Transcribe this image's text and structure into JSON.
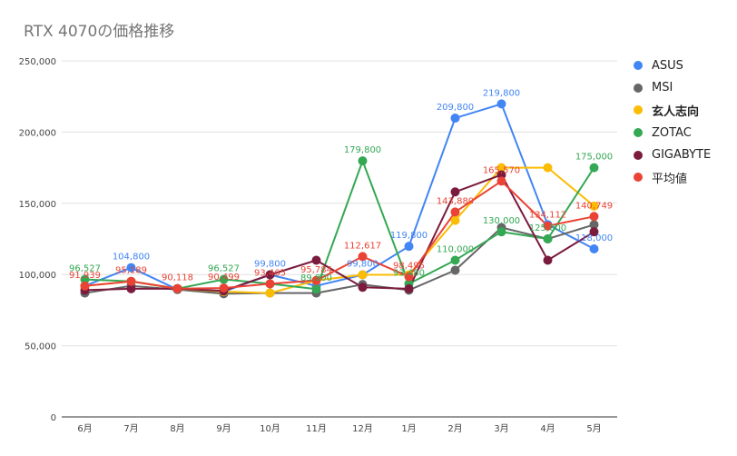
{
  "chart_data": {
    "type": "line",
    "title": "RTX 4070の価格推移",
    "xlabel": "",
    "ylabel": "",
    "categories": [
      "6月",
      "7月",
      "8月",
      "9月",
      "10月",
      "11月",
      "12月",
      "1月",
      "2月",
      "3月",
      "4月",
      "5月"
    ],
    "ylim": [
      0,
      250000
    ],
    "yticks": [
      "0",
      "50,000",
      "100,000",
      "150,000",
      "200,000",
      "250,000"
    ],
    "grid": true,
    "legend_position": "right",
    "series": [
      {
        "name": "ASUS",
        "color": "#4285f4",
        "values": [
          92000,
          104800,
          89500,
          88000,
          99800,
          92000,
          99800,
          119800,
          209800,
          219800,
          135000,
          118000
        ]
      },
      {
        "name": "MSI",
        "color": "#666666",
        "values": [
          87000,
          92000,
          89500,
          86500,
          87000,
          87000,
          93000,
          89000,
          103000,
          133000,
          125000,
          135000
        ]
      },
      {
        "name": "玄人志向",
        "color": "#fbbc04",
        "values": [
          91939,
          95189,
          90118,
          88000,
          87000,
          95784,
          99800,
          99800,
          138000,
          175000,
          175000,
          148000
        ]
      },
      {
        "name": "ZOTAC",
        "color": "#34a853",
        "values": [
          96527,
          95189,
          90118,
          96527,
          93465,
          89800,
          179800,
          93480,
          110000,
          130000,
          125000,
          175000
        ]
      },
      {
        "name": "GIGABYTE",
        "color": "#7b1b3e",
        "values": [
          89000,
          90000,
          90118,
          88500,
          99800,
          110000,
          91000,
          90000,
          158000,
          170000,
          110000,
          130000
        ]
      },
      {
        "name": "平均値",
        "color": "#ea4335",
        "values": [
          91939,
          95189,
          90118,
          90499,
          93465,
          95784,
          112617,
          98495,
          143880,
          165570,
          134112,
          140749
        ]
      }
    ],
    "data_labels": [
      {
        "text": "96,527",
        "series": 3,
        "index": 0,
        "color": "#34a853"
      },
      {
        "text": "91,939",
        "series": 5,
        "index": 0,
        "color": "#ea4335"
      },
      {
        "text": "104,800",
        "series": 0,
        "index": 1,
        "color": "#4285f4"
      },
      {
        "text": "95,189",
        "series": 5,
        "index": 1,
        "color": "#ea4335"
      },
      {
        "text": "90,118",
        "series": 5,
        "index": 2,
        "color": "#ea4335"
      },
      {
        "text": "96,527",
        "series": 3,
        "index": 3,
        "color": "#34a853"
      },
      {
        "text": "90,499",
        "series": 5,
        "index": 3,
        "color": "#ea4335"
      },
      {
        "text": "99,800",
        "series": 0,
        "index": 4,
        "color": "#4285f4"
      },
      {
        "text": "93,465",
        "series": 5,
        "index": 4,
        "color": "#ea4335"
      },
      {
        "text": "95,784",
        "series": 5,
        "index": 5,
        "color": "#ea4335"
      },
      {
        "text": "89,800",
        "series": 3,
        "index": 5,
        "color": "#34a853"
      },
      {
        "text": "179,800",
        "series": 3,
        "index": 6,
        "color": "#34a853"
      },
      {
        "text": "112,617",
        "series": 5,
        "index": 6,
        "color": "#ea4335"
      },
      {
        "text": "99,800",
        "series": 0,
        "index": 6,
        "color": "#4285f4"
      },
      {
        "text": "119,800",
        "series": 0,
        "index": 7,
        "color": "#4285f4"
      },
      {
        "text": "98,495",
        "series": 5,
        "index": 7,
        "color": "#ea4335"
      },
      {
        "text": "93,480",
        "series": 3,
        "index": 7,
        "color": "#34a853"
      },
      {
        "text": "209,800",
        "series": 0,
        "index": 8,
        "color": "#4285f4"
      },
      {
        "text": "143,880",
        "series": 5,
        "index": 8,
        "color": "#ea4335"
      },
      {
        "text": "110,000",
        "series": 3,
        "index": 8,
        "color": "#34a853"
      },
      {
        "text": "219,800",
        "series": 0,
        "index": 9,
        "color": "#4285f4"
      },
      {
        "text": "165,570",
        "series": 5,
        "index": 9,
        "color": "#ea4335"
      },
      {
        "text": "130,000",
        "series": 3,
        "index": 9,
        "color": "#34a853"
      },
      {
        "text": "134,112",
        "series": 5,
        "index": 10,
        "color": "#ea4335"
      },
      {
        "text": "125,000",
        "series": 3,
        "index": 10,
        "color": "#34a853"
      },
      {
        "text": "175,000",
        "series": 3,
        "index": 11,
        "color": "#34a853"
      },
      {
        "text": "140,749",
        "series": 5,
        "index": 11,
        "color": "#ea4335"
      },
      {
        "text": "118,000",
        "series": 0,
        "index": 11,
        "color": "#4285f4"
      }
    ]
  }
}
